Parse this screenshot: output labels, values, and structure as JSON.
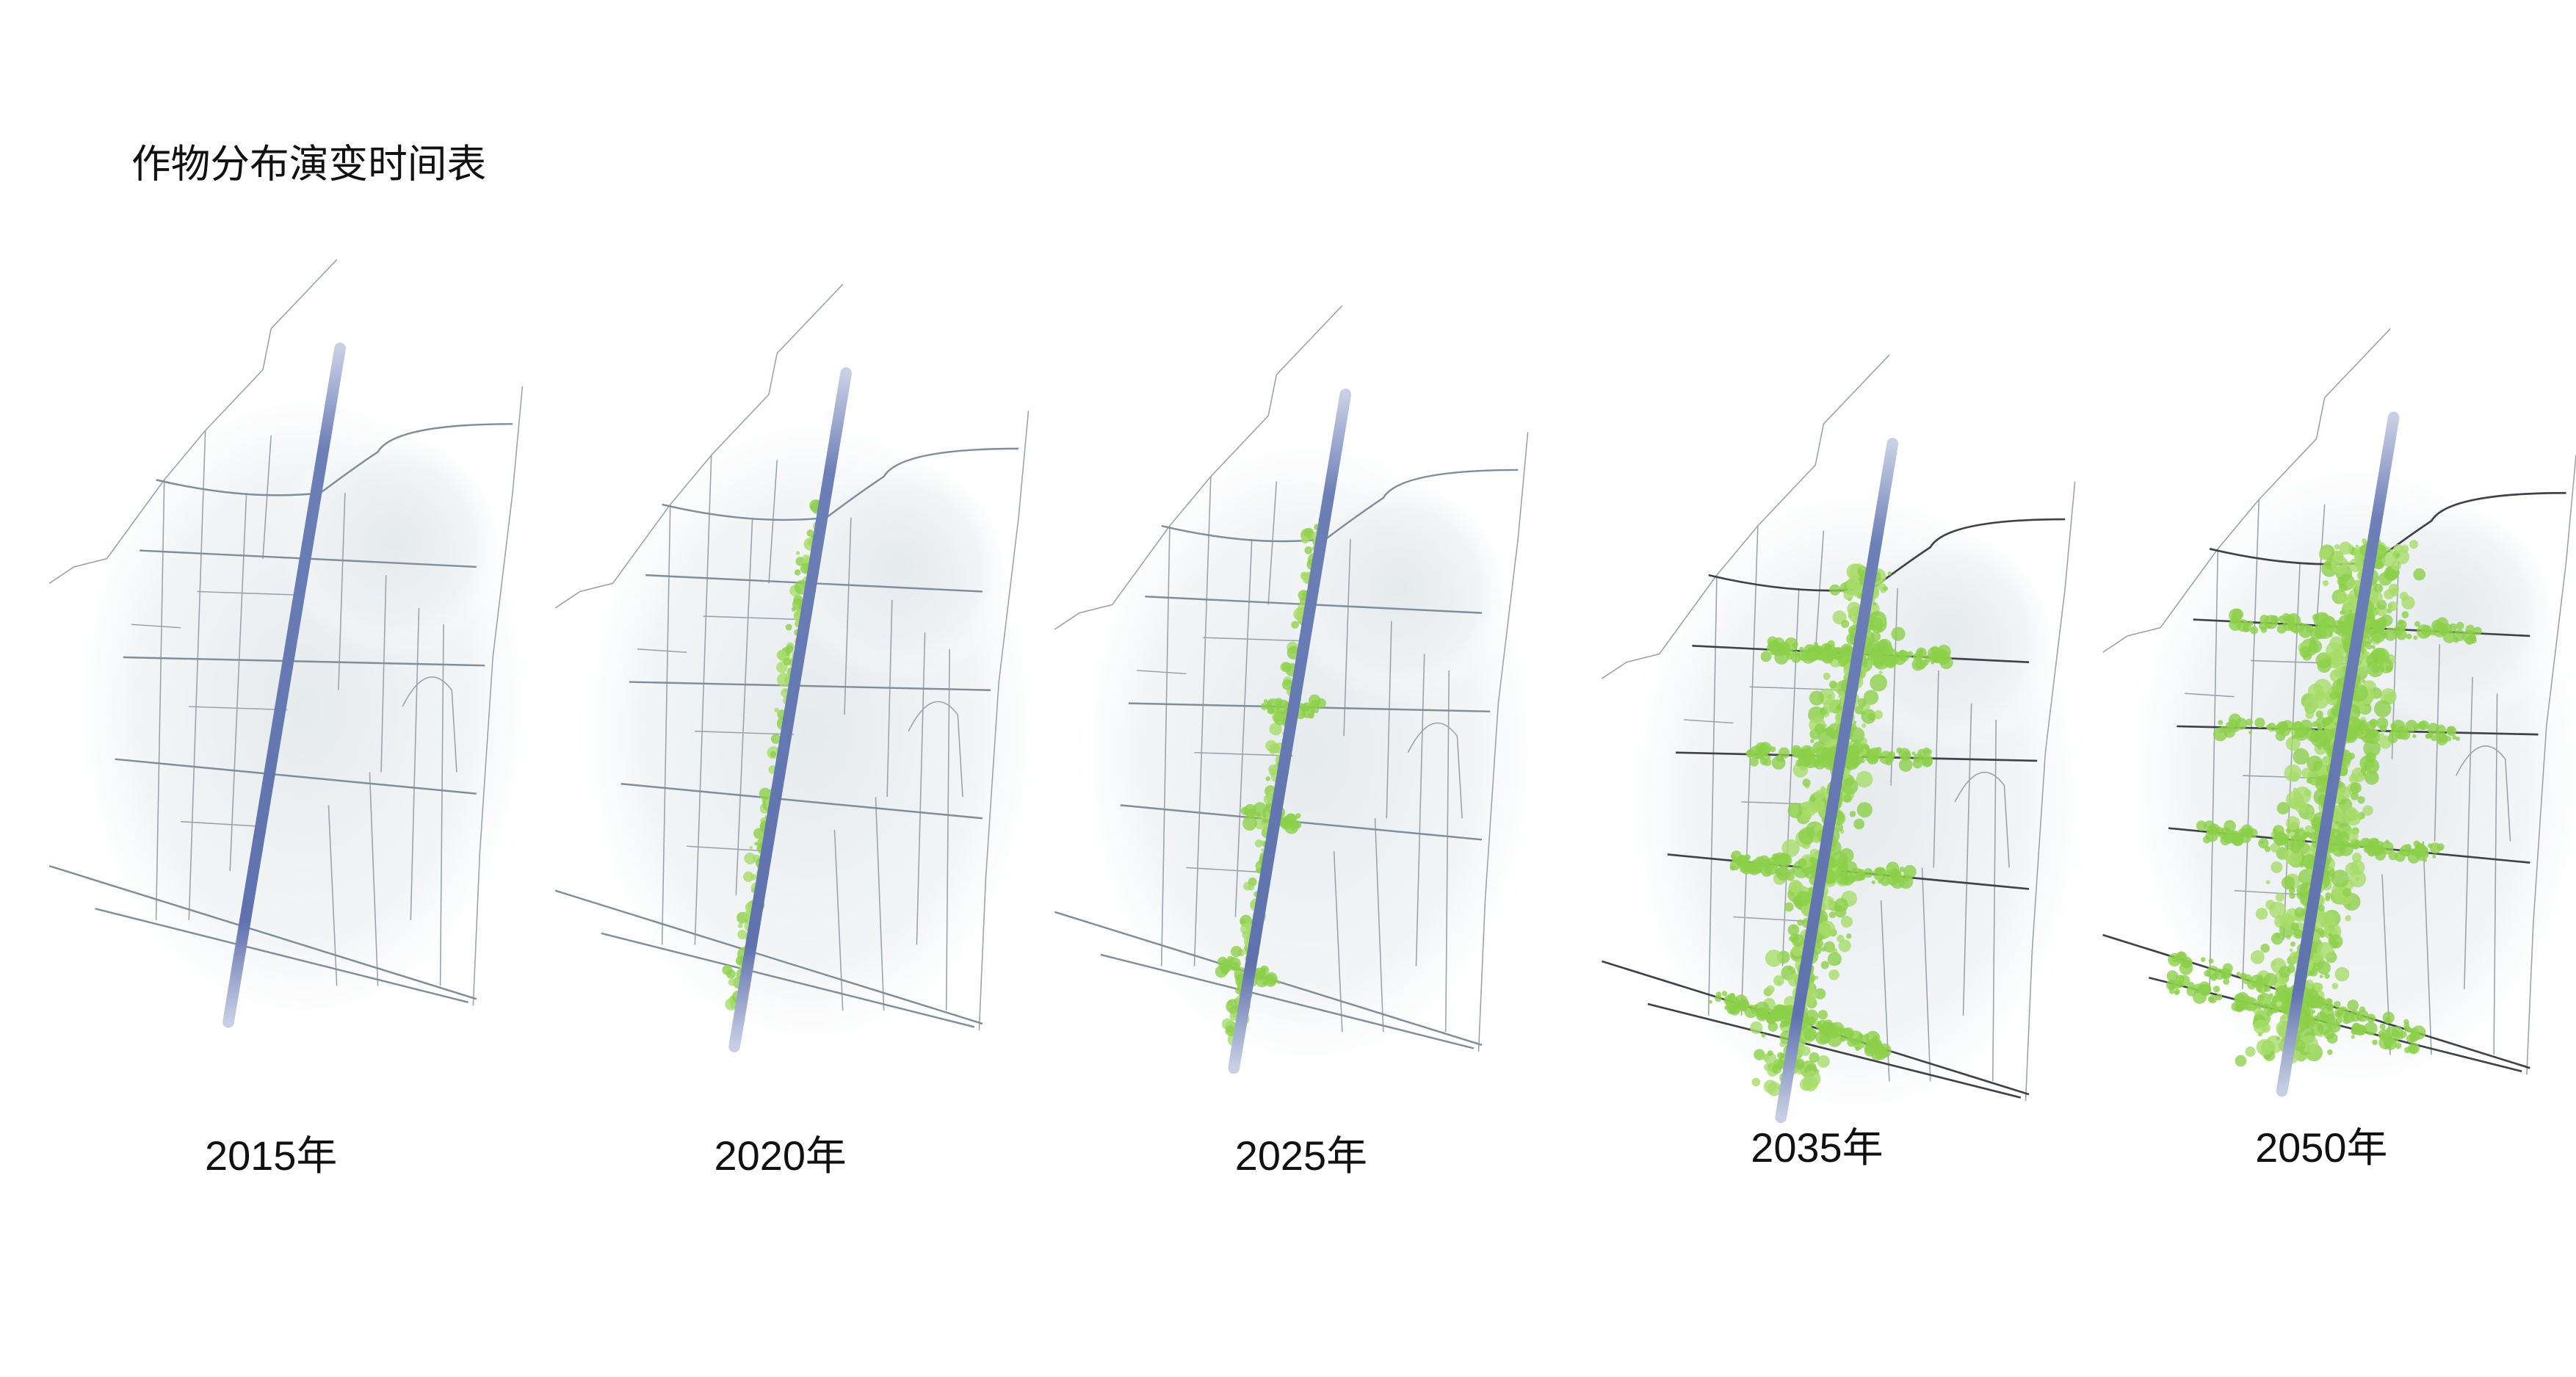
{
  "title": "作物分布演变时间表",
  "panels": [
    {
      "label": "2015年"
    },
    {
      "label": "2020年"
    },
    {
      "label": "2025年"
    },
    {
      "label": "2035年"
    },
    {
      "label": "2050年"
    }
  ]
}
